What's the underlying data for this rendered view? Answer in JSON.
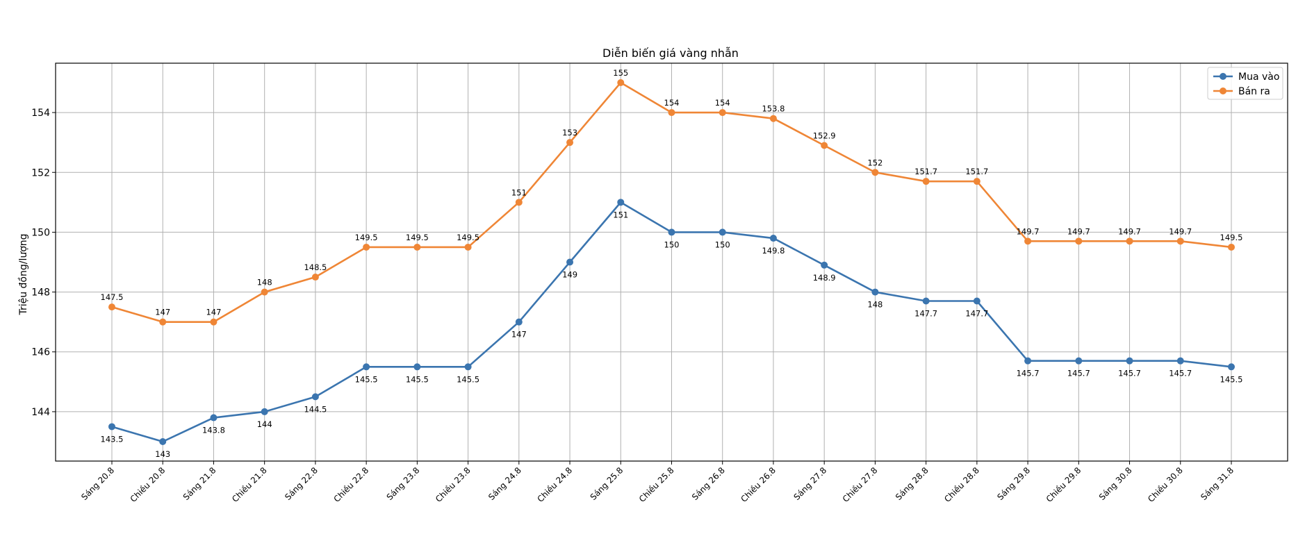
{
  "chart_data": {
    "type": "line",
    "title": "Diễn biến giá vàng nhẫn",
    "xlabel": "",
    "ylabel": "Triệu đồng/lượng",
    "ylim": [
      142.35,
      155.65
    ],
    "yticks": [
      144,
      146,
      148,
      150,
      152,
      154
    ],
    "grid": true,
    "legend": "top-right",
    "categories": [
      "Sáng 20.8",
      "Chiều 20.8",
      "Sáng 21.8",
      "Chiều 21.8",
      "Sáng 22.8",
      "Chiều 22.8",
      "Sáng 23.8",
      "Chiều 23.8",
      "Sáng 24.8",
      "Chiều 24.8",
      "Sáng 25.8",
      "Chiều 25.8",
      "Sáng 26.8",
      "Chiều 26.8",
      "Sáng 27.8",
      "Chiều 27.8",
      "Sáng 28.8",
      "Chiều 28.8",
      "Sáng 29.8",
      "Chiều 29.8",
      "Sáng 30.8",
      "Chiều 30.8",
      "Sáng 31.8"
    ],
    "series": [
      {
        "name": "Mua vào",
        "color": "#3b75af",
        "label_position": "below",
        "values": [
          143.5,
          143,
          143.8,
          144,
          144.5,
          145.5,
          145.5,
          145.5,
          147,
          149,
          151,
          150,
          150,
          149.8,
          148.9,
          148,
          147.7,
          147.7,
          145.7,
          145.7,
          145.7,
          145.7,
          145.5
        ],
        "labels": [
          "143.5",
          "143",
          "143.8",
          "144",
          "144.5",
          "145.5",
          "145.5",
          "145.5",
          "147",
          "149",
          "151",
          "150",
          "150",
          "149.8",
          "148.9",
          "148",
          "147.7",
          "147.7",
          "145.7",
          "145.7",
          "145.7",
          "145.7",
          "145.5"
        ]
      },
      {
        "name": "Bán ra",
        "color": "#ef8636",
        "label_position": "above",
        "values": [
          147.5,
          147,
          147,
          148,
          148.5,
          149.5,
          149.5,
          149.5,
          151,
          153,
          155,
          154,
          154,
          153.8,
          152.9,
          152,
          151.7,
          151.7,
          149.7,
          149.7,
          149.7,
          149.7,
          149.5
        ],
        "labels": [
          "147.5",
          "147",
          "147",
          "148",
          "148.5",
          "149.5",
          "149.5",
          "149.5",
          "151",
          "153",
          "155",
          "154",
          "154",
          "153.8",
          "152.9",
          "152",
          "151.7",
          "151.7",
          "149.7",
          "149.7",
          "149.7",
          "149.7",
          "149.5"
        ]
      }
    ]
  }
}
